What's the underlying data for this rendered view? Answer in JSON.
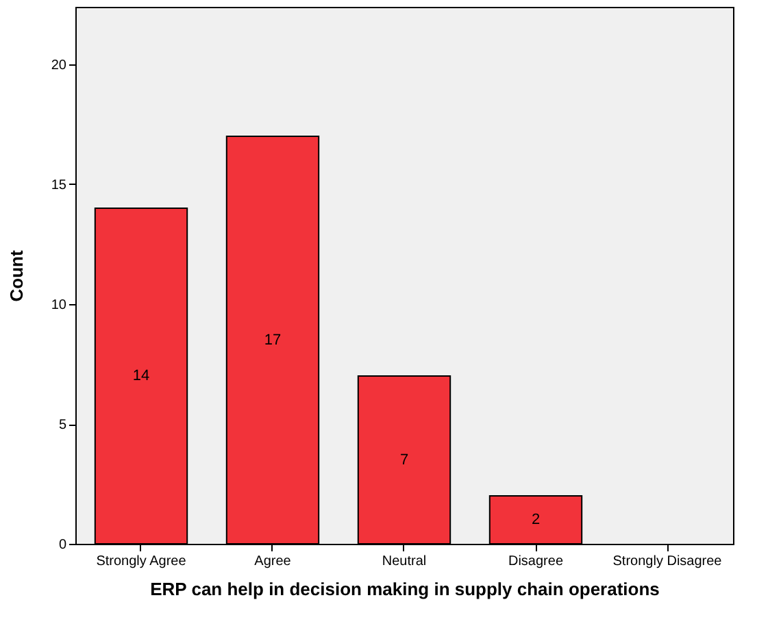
{
  "chart_data": {
    "type": "bar",
    "xlabel": "ERP can help in decision making in supply chain operations",
    "ylabel": "Count",
    "categories": [
      "Strongly Agree",
      "Agree",
      "Neutral",
      "Disagree",
      "Strongly Disagree"
    ],
    "values": [
      14,
      17,
      7,
      2,
      0
    ],
    "value_labels": [
      "14",
      "17",
      "7",
      "2",
      null
    ],
    "color": "#f2333a",
    "ylim": [
      0,
      22.4
    ],
    "yticks": [
      0,
      5,
      10,
      15,
      20
    ],
    "grid": false
  }
}
